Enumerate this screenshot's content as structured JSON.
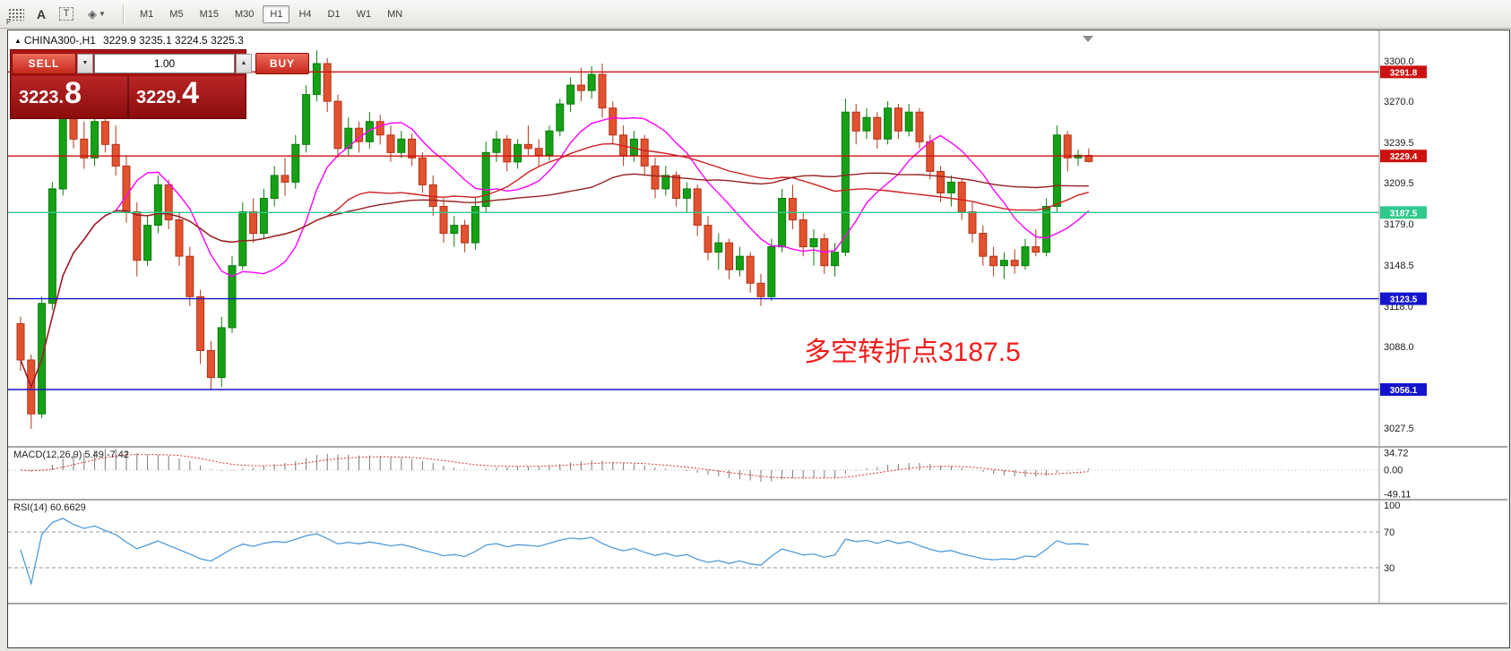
{
  "toolbar": {
    "tools": {
      "pattern_label": "F",
      "text_tool": "A",
      "textbox_tool": "T"
    },
    "timeframes": [
      {
        "label": "M1"
      },
      {
        "label": "M5"
      },
      {
        "label": "M15"
      },
      {
        "label": "M30"
      },
      {
        "label": "H1",
        "active": true
      },
      {
        "label": "H4"
      },
      {
        "label": "D1"
      },
      {
        "label": "W1"
      },
      {
        "label": "MN"
      }
    ]
  },
  "icons": {
    "title_marker": "▲",
    "volume_down": "▼",
    "volume_up": "▲",
    "dropdown_caret": "▼"
  },
  "chart": {
    "title_symbol": "CHINA300-,H1",
    "title_ohlc": "3229.9 3235.1 3224.5 3225.3",
    "annotation": {
      "text": "多空转折点3187.5",
      "color": "#f21b1b"
    },
    "up_color": "#16a016",
    "up_stroke": "#0b7c0b",
    "down_color": "#e2522f",
    "down_stroke": "#b23418",
    "axis_ticks": [
      {
        "label": "3300.0",
        "value": 3300.0
      },
      {
        "label": "3270.0",
        "value": 3270.0
      },
      {
        "label": "3239.5",
        "value": 3239.5
      },
      {
        "label": "3209.5",
        "value": 3209.5
      },
      {
        "label": "3179.0",
        "value": 3179.0
      },
      {
        "label": "3148.5",
        "value": 3148.5
      },
      {
        "label": "3118.0",
        "value": 3118.0
      },
      {
        "label": "3088.0",
        "value": 3088.0
      },
      {
        "label": "3027.5",
        "value": 3027.5
      }
    ],
    "hlines": [
      {
        "price": 3291.8,
        "label": "3291.8",
        "color": "#cc1111"
      },
      {
        "price": 3229.4,
        "label": "3229.4",
        "color": "#cc1111"
      },
      {
        "price": 3187.5,
        "label": "3187.5",
        "color": "#2fc98c"
      },
      {
        "price": 3123.5,
        "label": "3123.5",
        "color": "#1414cc"
      },
      {
        "price": 3056.1,
        "label": "3056.1",
        "color": "#1414cc"
      }
    ],
    "ma": [
      {
        "period": 10,
        "color": "#ff00ff"
      },
      {
        "period": 30,
        "color": "#d02020"
      },
      {
        "period": 55,
        "color": "#952020"
      }
    ],
    "candles": [
      [
        3105,
        3110,
        3070,
        3078
      ],
      [
        3078,
        3082,
        3027,
        3038
      ],
      [
        3038,
        3125,
        3035,
        3120
      ],
      [
        3120,
        3210,
        3115,
        3205
      ],
      [
        3205,
        3278,
        3200,
        3262
      ],
      [
        3262,
        3268,
        3235,
        3242
      ],
      [
        3242,
        3255,
        3220,
        3228
      ],
      [
        3228,
        3262,
        3222,
        3255
      ],
      [
        3255,
        3260,
        3232,
        3238
      ],
      [
        3238,
        3252,
        3215,
        3222
      ],
      [
        3222,
        3230,
        3180,
        3188
      ],
      [
        3188,
        3195,
        3140,
        3152
      ],
      [
        3152,
        3185,
        3148,
        3178
      ],
      [
        3178,
        3215,
        3172,
        3208
      ],
      [
        3208,
        3212,
        3175,
        3182
      ],
      [
        3182,
        3188,
        3148,
        3155
      ],
      [
        3155,
        3162,
        3118,
        3125
      ],
      [
        3125,
        3130,
        3075,
        3085
      ],
      [
        3085,
        3092,
        3056,
        3065
      ],
      [
        3065,
        3110,
        3058,
        3102
      ],
      [
        3102,
        3155,
        3098,
        3148
      ],
      [
        3148,
        3195,
        3145,
        3188
      ],
      [
        3188,
        3198,
        3165,
        3172
      ],
      [
        3172,
        3205,
        3168,
        3198
      ],
      [
        3198,
        3222,
        3192,
        3215
      ],
      [
        3215,
        3228,
        3200,
        3210
      ],
      [
        3210,
        3245,
        3205,
        3238
      ],
      [
        3238,
        3282,
        3232,
        3275
      ],
      [
        3275,
        3308,
        3270,
        3298
      ],
      [
        3298,
        3302,
        3262,
        3270
      ],
      [
        3270,
        3275,
        3228,
        3235
      ],
      [
        3235,
        3258,
        3230,
        3250
      ],
      [
        3250,
        3255,
        3232,
        3240
      ],
      [
        3240,
        3262,
        3235,
        3255
      ],
      [
        3255,
        3260,
        3238,
        3245
      ],
      [
        3245,
        3252,
        3225,
        3232
      ],
      [
        3232,
        3248,
        3228,
        3242
      ],
      [
        3242,
        3246,
        3222,
        3228
      ],
      [
        3228,
        3232,
        3202,
        3208
      ],
      [
        3208,
        3215,
        3185,
        3192
      ],
      [
        3192,
        3198,
        3165,
        3172
      ],
      [
        3172,
        3185,
        3162,
        3178
      ],
      [
        3178,
        3182,
        3158,
        3165
      ],
      [
        3165,
        3198,
        3160,
        3192
      ],
      [
        3192,
        3240,
        3188,
        3232
      ],
      [
        3232,
        3248,
        3225,
        3242
      ],
      [
        3242,
        3245,
        3218,
        3225
      ],
      [
        3225,
        3242,
        3220,
        3238
      ],
      [
        3238,
        3252,
        3230,
        3235
      ],
      [
        3235,
        3242,
        3222,
        3230
      ],
      [
        3230,
        3252,
        3226,
        3248
      ],
      [
        3248,
        3272,
        3244,
        3268
      ],
      [
        3268,
        3288,
        3262,
        3282
      ],
      [
        3282,
        3295,
        3270,
        3278
      ],
      [
        3278,
        3296,
        3272,
        3290
      ],
      [
        3290,
        3298,
        3258,
        3265
      ],
      [
        3265,
        3270,
        3238,
        3245
      ],
      [
        3245,
        3252,
        3222,
        3230
      ],
      [
        3230,
        3248,
        3225,
        3242
      ],
      [
        3242,
        3245,
        3215,
        3222
      ],
      [
        3222,
        3228,
        3198,
        3205
      ],
      [
        3205,
        3222,
        3200,
        3215
      ],
      [
        3215,
        3218,
        3192,
        3198
      ],
      [
        3198,
        3210,
        3188,
        3205
      ],
      [
        3205,
        3208,
        3170,
        3178
      ],
      [
        3178,
        3185,
        3152,
        3158
      ],
      [
        3158,
        3172,
        3145,
        3165
      ],
      [
        3165,
        3168,
        3138,
        3145
      ],
      [
        3145,
        3162,
        3140,
        3155
      ],
      [
        3155,
        3158,
        3128,
        3135
      ],
      [
        3135,
        3142,
        3118,
        3125
      ],
      [
        3125,
        3168,
        3122,
        3162
      ],
      [
        3162,
        3205,
        3158,
        3198
      ],
      [
        3198,
        3208,
        3175,
        3182
      ],
      [
        3182,
        3188,
        3155,
        3162
      ],
      [
        3162,
        3175,
        3148,
        3168
      ],
      [
        3168,
        3172,
        3142,
        3148
      ],
      [
        3148,
        3165,
        3140,
        3158
      ],
      [
        3158,
        3272,
        3155,
        3262
      ],
      [
        3262,
        3268,
        3238,
        3248
      ],
      [
        3248,
        3265,
        3242,
        3258
      ],
      [
        3258,
        3262,
        3235,
        3242
      ],
      [
        3242,
        3270,
        3238,
        3265
      ],
      [
        3265,
        3268,
        3242,
        3248
      ],
      [
        3248,
        3268,
        3244,
        3262
      ],
      [
        3262,
        3265,
        3235,
        3240
      ],
      [
        3240,
        3245,
        3212,
        3218
      ],
      [
        3218,
        3222,
        3195,
        3202
      ],
      [
        3202,
        3215,
        3192,
        3210
      ],
      [
        3210,
        3212,
        3182,
        3188
      ],
      [
        3188,
        3195,
        3165,
        3172
      ],
      [
        3172,
        3178,
        3148,
        3155
      ],
      [
        3155,
        3162,
        3140,
        3148
      ],
      [
        3148,
        3158,
        3138,
        3152
      ],
      [
        3152,
        3160,
        3142,
        3148
      ],
      [
        3148,
        3168,
        3145,
        3162
      ],
      [
        3162,
        3175,
        3155,
        3158
      ],
      [
        3158,
        3198,
        3155,
        3192
      ],
      [
        3192,
        3252,
        3188,
        3245
      ],
      [
        3245,
        3248,
        3218,
        3228
      ],
      [
        3228,
        3234,
        3222,
        3230
      ],
      [
        3229.9,
        3235.1,
        3224.5,
        3225.3
      ]
    ]
  },
  "trade_panel": {
    "sell_label": "SELL",
    "buy_label": "BUY",
    "volume": "1.00",
    "sell_price_base": "3223.",
    "sell_price_big": "8",
    "buy_price_base": "3229.",
    "buy_price_big": "4"
  },
  "macd": {
    "label": "MACD(12,26,9) 5.49 -7.42",
    "axis": [
      {
        "label": "34.72",
        "value": 34.72
      },
      {
        "label": "0.00",
        "value": 0
      },
      {
        "label": "-49.11",
        "value": -49.11
      }
    ]
  },
  "rsi": {
    "label": "RSI(14) 60.6629",
    "levels": [
      70,
      30
    ],
    "axis": [
      {
        "label": "100",
        "value": 100
      },
      {
        "label": "70",
        "value": 70
      },
      {
        "label": "30",
        "value": 30
      }
    ]
  }
}
